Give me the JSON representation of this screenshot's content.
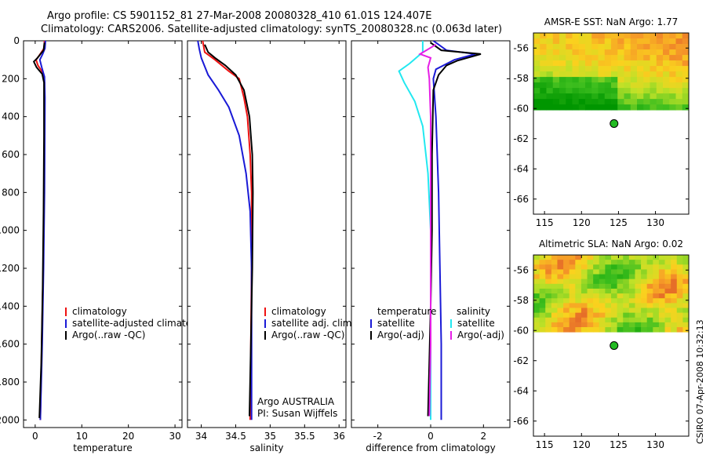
{
  "title_line1": "Argo profile: CS 5901152_81 27-Mar-2008 20080328_410 61.01S 124.407E",
  "title_line2": "Climatology: CARS2006. Satellite-adjusted climatology: synTS_20080328.nc (0.063d later)",
  "credit": "CSIRO 07-Apr-2008 10:32:13",
  "colors": {
    "red": "#ee1111",
    "blue": "#1a1ad6",
    "black": "#000000",
    "cyan": "#22e8f0",
    "magenta": "#e61ee6"
  },
  "chart_data": [
    {
      "type": "line",
      "id": "temperature",
      "xlabel": "temperature",
      "xlim": [
        -2.5,
        31.5
      ],
      "ylim": [
        0,
        2040
      ],
      "y_inverted": true,
      "xticks": [
        0,
        10,
        20,
        30
      ],
      "yticks": [
        0,
        200,
        400,
        600,
        800,
        1000,
        1200,
        1400,
        1600,
        1800,
        2000
      ],
      "legend": {
        "position": "bottom-right",
        "entries": [
          {
            "label": "climatology",
            "color": "red"
          },
          {
            "label": "satellite-adjusted climatology",
            "color": "blue"
          },
          {
            "label": "Argo(..raw -QC)",
            "color": "black"
          }
        ]
      },
      "series": [
        {
          "name": "climatology",
          "color": "red",
          "points": [
            [
              2.0,
              0
            ],
            [
              1.9,
              40
            ],
            [
              0.8,
              80
            ],
            [
              0.2,
              100
            ],
            [
              0.6,
              130
            ],
            [
              1.7,
              170
            ],
            [
              2.0,
              220
            ],
            [
              2.0,
              400
            ],
            [
              1.9,
              800
            ],
            [
              1.7,
              1200
            ],
            [
              1.4,
              1600
            ],
            [
              1.1,
              2000
            ]
          ]
        },
        {
          "name": "satellite-adjusted climatology",
          "color": "blue",
          "points": [
            [
              2.2,
              0
            ],
            [
              2.1,
              40
            ],
            [
              1.6,
              70
            ],
            [
              1.0,
              100
            ],
            [
              1.4,
              140
            ],
            [
              2.0,
              190
            ],
            [
              2.1,
              300
            ],
            [
              2.0,
              800
            ],
            [
              1.8,
              1200
            ],
            [
              1.5,
              1600
            ],
            [
              1.1,
              2000
            ]
          ]
        },
        {
          "name": "Argo(..raw -QC)",
          "color": "black",
          "points": [
            [
              2.0,
              10
            ],
            [
              1.8,
              50
            ],
            [
              0.5,
              90
            ],
            [
              -0.3,
              110
            ],
            [
              0.3,
              140
            ],
            [
              1.5,
              175
            ],
            [
              1.9,
              220
            ],
            [
              1.9,
              500
            ],
            [
              1.8,
              900
            ],
            [
              1.6,
              1300
            ],
            [
              1.3,
              1700
            ],
            [
              0.9,
              1990
            ]
          ]
        }
      ]
    },
    {
      "type": "line",
      "id": "salinity",
      "xlabel": "salinity",
      "xlim": [
        33.8,
        36.1
      ],
      "ylim": [
        0,
        2040
      ],
      "y_inverted": true,
      "xticks": [
        34,
        34.5,
        35,
        35.5,
        36
      ],
      "xticklabels": [
        "34",
        "34.5",
        "35",
        "35.5",
        "36"
      ],
      "legend": {
        "position": "bottom-right",
        "entries": [
          {
            "label": "climatology",
            "color": "red"
          },
          {
            "label": "satellite adj. clim.",
            "color": "blue"
          },
          {
            "label": "Argo(..raw -QC)",
            "color": "black"
          }
        ]
      },
      "annotation_lines": [
        "Argo AUSTRALIA",
        "PI: Susan Wijffels"
      ],
      "series": [
        {
          "name": "climatology",
          "color": "red",
          "points": [
            [
              34.02,
              0
            ],
            [
              34.05,
              60
            ],
            [
              34.2,
              100
            ],
            [
              34.4,
              160
            ],
            [
              34.55,
              200
            ],
            [
              34.62,
              300
            ],
            [
              34.67,
              400
            ],
            [
              34.71,
              600
            ],
            [
              34.73,
              800
            ],
            [
              34.73,
              1200
            ],
            [
              34.72,
              1600
            ],
            [
              34.71,
              2000
            ]
          ]
        },
        {
          "name": "satellite adj. clim.",
          "color": "blue",
          "points": [
            [
              33.95,
              0
            ],
            [
              33.97,
              40
            ],
            [
              34.0,
              90
            ],
            [
              34.1,
              180
            ],
            [
              34.25,
              260
            ],
            [
              34.4,
              350
            ],
            [
              34.55,
              500
            ],
            [
              34.65,
              700
            ],
            [
              34.71,
              900
            ],
            [
              34.73,
              1200
            ],
            [
              34.73,
              1600
            ],
            [
              34.73,
              2000
            ]
          ]
        },
        {
          "name": "Argo(..raw -QC)",
          "color": "black",
          "points": [
            [
              34.05,
              20
            ],
            [
              34.1,
              60
            ],
            [
              34.2,
              90
            ],
            [
              34.35,
              130
            ],
            [
              34.5,
              180
            ],
            [
              34.62,
              260
            ],
            [
              34.7,
              400
            ],
            [
              34.74,
              600
            ],
            [
              34.75,
              800
            ],
            [
              34.74,
              1200
            ],
            [
              34.72,
              1600
            ],
            [
              34.7,
              1980
            ]
          ]
        }
      ]
    },
    {
      "type": "line",
      "id": "difference",
      "xlabel": "difference from climatology",
      "xlim": [
        -3.0,
        3.0
      ],
      "ylim": [
        0,
        2040
      ],
      "y_inverted": true,
      "xticks": [
        -2,
        0,
        2
      ],
      "legend": {
        "position": "bottom",
        "columns": [
          {
            "heading": "temperature",
            "entries": [
              {
                "label": "satellite",
                "color": "blue"
              },
              {
                "label": "Argo(-adj)",
                "color": "black"
              }
            ]
          },
          {
            "heading": "salinity",
            "entries": [
              {
                "label": "satellite",
                "color": "cyan"
              },
              {
                "label": "Argo(-adj)",
                "color": "magenta"
              }
            ]
          }
        ]
      },
      "series": [
        {
          "name": "temperature satellite",
          "color": "blue",
          "points": [
            [
              0.1,
              0
            ],
            [
              0.6,
              50
            ],
            [
              1.7,
              70
            ],
            [
              0.9,
              100
            ],
            [
              0.2,
              150
            ],
            [
              0.1,
              200
            ],
            [
              0.2,
              400
            ],
            [
              0.3,
              800
            ],
            [
              0.35,
              1200
            ],
            [
              0.4,
              1600
            ],
            [
              0.4,
              2000
            ]
          ]
        },
        {
          "name": "temperature Argo(-adj)",
          "color": "black",
          "points": [
            [
              0.0,
              10
            ],
            [
              0.4,
              50
            ],
            [
              1.9,
              70
            ],
            [
              1.0,
              105
            ],
            [
              0.6,
              130
            ],
            [
              0.3,
              180
            ],
            [
              0.1,
              260
            ],
            [
              0.05,
              600
            ],
            [
              0.05,
              1000
            ],
            [
              0.0,
              1400
            ],
            [
              -0.1,
              1980
            ]
          ]
        },
        {
          "name": "salinity satellite",
          "color": "cyan",
          "points": [
            [
              -0.3,
              0
            ],
            [
              -0.3,
              60
            ],
            [
              -0.8,
              120
            ],
            [
              -1.2,
              160
            ],
            [
              -1.0,
              220
            ],
            [
              -0.6,
              320
            ],
            [
              -0.3,
              450
            ],
            [
              -0.1,
              700
            ],
            [
              0.0,
              1000
            ],
            [
              0.0,
              1600
            ],
            [
              0.0,
              2000
            ]
          ]
        },
        {
          "name": "salinity Argo(-adj)",
          "color": "magenta",
          "points": [
            [
              0.2,
              20
            ],
            [
              -0.4,
              70
            ],
            [
              0.0,
              90
            ],
            [
              -0.1,
              140
            ],
            [
              -0.05,
              200
            ],
            [
              0.0,
              400
            ],
            [
              0.0,
              800
            ],
            [
              0.0,
              1200
            ],
            [
              0.0,
              1600
            ],
            [
              -0.05,
              1980
            ]
          ]
        }
      ]
    },
    {
      "type": "heatmap",
      "id": "sst_map",
      "title": "AMSR-E SST: NaN Argo: 1.77",
      "xlim": [
        113.5,
        134.5
      ],
      "ylim": [
        -67,
        -55
      ],
      "xticks": [
        115,
        120,
        125,
        130
      ],
      "yticks": [
        -56,
        -58,
        -60,
        -62,
        -64,
        -66
      ],
      "data_lat_range": [
        -60.1,
        -55
      ],
      "cols": 24,
      "rows": 14,
      "seed": 7,
      "pattern": "sst",
      "profile_location": {
        "lon": 124.4,
        "lat": -61.0
      }
    },
    {
      "type": "heatmap",
      "id": "sla_map",
      "title": "Altimetric SLA: NaN Argo: 0.02",
      "xlim": [
        113.5,
        134.5
      ],
      "ylim": [
        -67,
        -55
      ],
      "xticks": [
        115,
        120,
        125,
        130
      ],
      "yticks": [
        -56,
        -58,
        -60,
        -62,
        -64,
        -66
      ],
      "data_lat_range": [
        -60.1,
        -55
      ],
      "cols": 26,
      "rows": 16,
      "seed": 21,
      "pattern": "sla",
      "profile_location": {
        "lon": 124.4,
        "lat": -61.0
      }
    }
  ]
}
